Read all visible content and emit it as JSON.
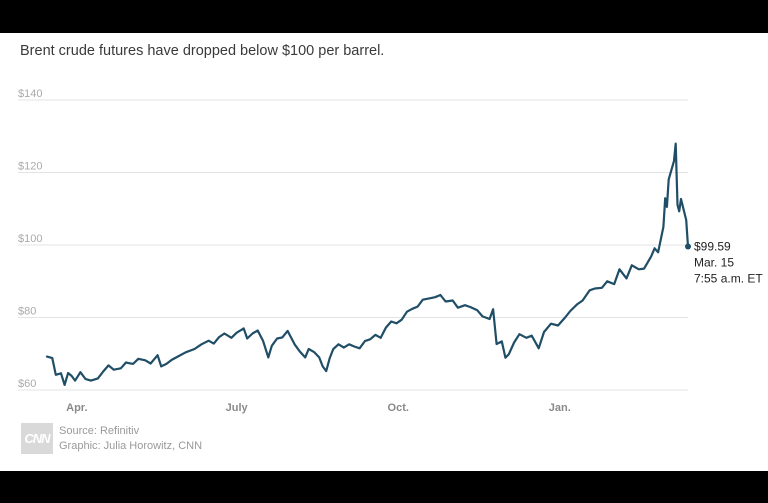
{
  "subtitle": "Brent crude futures have dropped below $100 per barrel.",
  "source": "Source: Refinitiv",
  "graphic": "Graphic: Julia Horowitz, CNN",
  "logo": "CNN",
  "colors": {
    "line": "#1f4e66",
    "grid": "#e3e3e3"
  },
  "chart_data": {
    "type": "line",
    "title": "",
    "xlabel": "",
    "ylabel": "",
    "ylim": [
      60,
      140
    ],
    "y_ticks": [
      {
        "value": 140,
        "label": "$140"
      },
      {
        "value": 120,
        "label": "$120"
      },
      {
        "value": 100,
        "label": "$100"
      },
      {
        "value": 80,
        "label": "$80"
      },
      {
        "value": 60,
        "label": "$60"
      }
    ],
    "x_range": [
      "2021-03-15",
      "2022-03-15"
    ],
    "x_ticks": [
      {
        "date": "2021-04-01",
        "label": "Apr."
      },
      {
        "date": "2021-07-01",
        "label": "July"
      },
      {
        "date": "2021-10-01",
        "label": "Oct."
      },
      {
        "date": "2022-01-01",
        "label": "Jan."
      }
    ],
    "grid": true,
    "series": [
      {
        "values": [
          [
            "2021-03-15",
            69.2
          ],
          [
            "2021-03-18",
            68.8
          ],
          [
            "2021-03-20",
            64.2
          ],
          [
            "2021-03-23",
            64.6
          ],
          [
            "2021-03-25",
            61.4
          ],
          [
            "2021-03-27",
            64.7
          ],
          [
            "2021-03-29",
            63.9
          ],
          [
            "2021-03-31",
            62.6
          ],
          [
            "2021-04-03",
            64.9
          ],
          [
            "2021-04-06",
            63.0
          ],
          [
            "2021-04-09",
            62.6
          ],
          [
            "2021-04-13",
            63.2
          ],
          [
            "2021-04-16",
            65.1
          ],
          [
            "2021-04-19",
            66.8
          ],
          [
            "2021-04-22",
            65.6
          ],
          [
            "2021-04-26",
            66.0
          ],
          [
            "2021-04-29",
            67.6
          ],
          [
            "2021-05-03",
            67.2
          ],
          [
            "2021-05-06",
            68.6
          ],
          [
            "2021-05-10",
            68.2
          ],
          [
            "2021-05-13",
            67.3
          ],
          [
            "2021-05-17",
            69.6
          ],
          [
            "2021-05-19",
            66.5
          ],
          [
            "2021-05-22",
            67.2
          ],
          [
            "2021-05-25",
            68.3
          ],
          [
            "2021-05-28",
            69.1
          ],
          [
            "2021-06-02",
            70.4
          ],
          [
            "2021-06-07",
            71.3
          ],
          [
            "2021-06-11",
            72.6
          ],
          [
            "2021-06-15",
            73.6
          ],
          [
            "2021-06-18",
            72.8
          ],
          [
            "2021-06-21",
            74.6
          ],
          [
            "2021-06-24",
            75.6
          ],
          [
            "2021-06-28",
            74.4
          ],
          [
            "2021-07-01",
            75.8
          ],
          [
            "2021-07-05",
            77.0
          ],
          [
            "2021-07-07",
            74.2
          ],
          [
            "2021-07-10",
            75.6
          ],
          [
            "2021-07-13",
            76.4
          ],
          [
            "2021-07-16",
            73.6
          ],
          [
            "2021-07-19",
            69.0
          ],
          [
            "2021-07-21",
            72.2
          ],
          [
            "2021-07-24",
            74.2
          ],
          [
            "2021-07-27",
            74.5
          ],
          [
            "2021-07-30",
            76.3
          ],
          [
            "2021-08-03",
            72.6
          ],
          [
            "2021-08-06",
            70.6
          ],
          [
            "2021-08-09",
            69.0
          ],
          [
            "2021-08-11",
            71.3
          ],
          [
            "2021-08-14",
            70.5
          ],
          [
            "2021-08-17",
            69.0
          ],
          [
            "2021-08-19",
            66.5
          ],
          [
            "2021-08-21",
            65.2
          ],
          [
            "2021-08-23",
            68.8
          ],
          [
            "2021-08-25",
            71.3
          ],
          [
            "2021-08-28",
            72.6
          ],
          [
            "2021-08-31",
            71.7
          ],
          [
            "2021-09-03",
            72.6
          ],
          [
            "2021-09-06",
            72.0
          ],
          [
            "2021-09-09",
            71.5
          ],
          [
            "2021-09-12",
            73.5
          ],
          [
            "2021-09-15",
            74.0
          ],
          [
            "2021-09-18",
            75.2
          ],
          [
            "2021-09-21",
            74.4
          ],
          [
            "2021-09-24",
            77.2
          ],
          [
            "2021-09-27",
            78.9
          ],
          [
            "2021-09-30",
            78.4
          ],
          [
            "2021-10-03",
            79.4
          ],
          [
            "2021-10-06",
            81.6
          ],
          [
            "2021-10-09",
            82.4
          ],
          [
            "2021-10-12",
            83.0
          ],
          [
            "2021-10-15",
            84.9
          ],
          [
            "2021-10-19",
            85.3
          ],
          [
            "2021-10-22",
            85.6
          ],
          [
            "2021-10-25",
            86.2
          ],
          [
            "2021-10-28",
            84.4
          ],
          [
            "2021-11-01",
            84.7
          ],
          [
            "2021-11-04",
            82.7
          ],
          [
            "2021-11-08",
            83.4
          ],
          [
            "2021-11-11",
            82.9
          ],
          [
            "2021-11-15",
            82.0
          ],
          [
            "2021-11-18",
            80.3
          ],
          [
            "2021-11-22",
            79.6
          ],
          [
            "2021-11-24",
            82.3
          ],
          [
            "2021-11-26",
            72.7
          ],
          [
            "2021-11-29",
            73.4
          ],
          [
            "2021-12-01",
            68.9
          ],
          [
            "2021-12-03",
            69.9
          ],
          [
            "2021-12-06",
            73.1
          ],
          [
            "2021-12-09",
            75.4
          ],
          [
            "2021-12-13",
            74.4
          ],
          [
            "2021-12-16",
            75.0
          ],
          [
            "2021-12-20",
            71.5
          ],
          [
            "2021-12-23",
            76.0
          ],
          [
            "2021-12-27",
            78.3
          ],
          [
            "2021-12-31",
            77.8
          ],
          [
            "2022-01-04",
            80.0
          ],
          [
            "2022-01-07",
            81.8
          ],
          [
            "2022-01-11",
            83.7
          ],
          [
            "2022-01-14",
            84.7
          ],
          [
            "2022-01-18",
            87.5
          ],
          [
            "2022-01-21",
            88.0
          ],
          [
            "2022-01-25",
            88.2
          ],
          [
            "2022-01-28",
            90.0
          ],
          [
            "2022-02-01",
            89.2
          ],
          [
            "2022-02-04",
            93.3
          ],
          [
            "2022-02-08",
            90.8
          ],
          [
            "2022-02-11",
            94.4
          ],
          [
            "2022-02-15",
            93.3
          ],
          [
            "2022-02-18",
            93.5
          ],
          [
            "2022-02-22",
            96.8
          ],
          [
            "2022-02-24",
            99.1
          ],
          [
            "2022-02-26",
            98.0
          ],
          [
            "2022-03-01",
            105.0
          ],
          [
            "2022-03-02",
            112.9
          ],
          [
            "2022-03-03",
            110.5
          ],
          [
            "2022-03-04",
            118.1
          ],
          [
            "2022-03-07",
            123.2
          ],
          [
            "2022-03-08",
            127.98
          ],
          [
            "2022-03-09",
            111.1
          ],
          [
            "2022-03-10",
            109.3
          ],
          [
            "2022-03-11",
            112.7
          ],
          [
            "2022-03-14",
            106.9
          ],
          [
            "2022-03-15",
            99.59
          ]
        ]
      }
    ],
    "annotation": {
      "date": "2022-03-15",
      "value": 99.59,
      "lines": [
        "$99.59",
        "Mar. 15",
        "7:55 a.m. ET"
      ]
    }
  }
}
